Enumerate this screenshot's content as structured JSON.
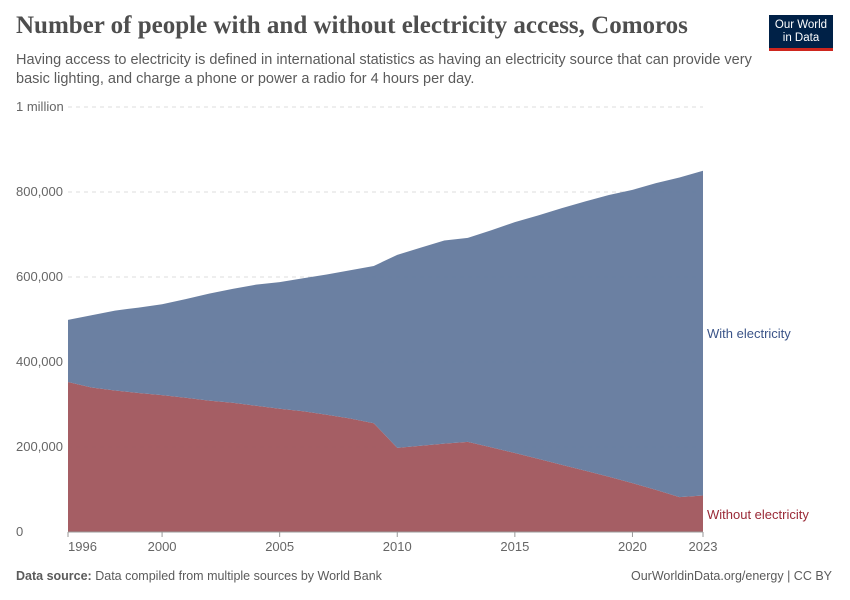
{
  "header": {
    "title": "Number of people with and without electricity access, Comoros",
    "subtitle": "Having access to electricity is defined in international statistics as having an electricity source that can provide very basic lighting, and charge a phone or power a radio for 4 hours per day.",
    "logo_text": "Our World in Data"
  },
  "footer": {
    "source_label": "Data source:",
    "source_text": "Data compiled from multiple sources by World Bank",
    "license": "OurWorldinData.org/energy | CC BY"
  },
  "chart_data": {
    "type": "area",
    "stacked": true,
    "x": [
      1996,
      1997,
      1998,
      1999,
      2000,
      2001,
      2002,
      2003,
      2004,
      2005,
      2006,
      2007,
      2008,
      2009,
      2010,
      2011,
      2012,
      2013,
      2014,
      2015,
      2016,
      2017,
      2018,
      2019,
      2020,
      2021,
      2022,
      2023
    ],
    "series": [
      {
        "name": "Without electricity",
        "color": "#a2595f",
        "values": [
          353000,
          340000,
          333000,
          327000,
          322000,
          316000,
          309000,
          304000,
          297000,
          290000,
          284000,
          276000,
          267000,
          256000,
          198000,
          203000,
          208000,
          212000,
          199000,
          186000,
          172000,
          158000,
          144000,
          130000,
          115000,
          99000,
          82000,
          86000
        ]
      },
      {
        "name": "With electricity",
        "color": "#667c9f",
        "values": [
          146000,
          170000,
          188000,
          201000,
          214000,
          232000,
          252000,
          268000,
          285000,
          298000,
          313000,
          330000,
          349000,
          370000,
          454000,
          466000,
          478000,
          480000,
          511000,
          543000,
          573000,
          604000,
          634000,
          663000,
          690000,
          722000,
          752000,
          764000
        ]
      }
    ],
    "ylim": [
      0,
      1000000
    ],
    "yticks": [
      {
        "v": 0,
        "label": "0"
      },
      {
        "v": 200000,
        "label": "200,000"
      },
      {
        "v": 400000,
        "label": "400,000"
      },
      {
        "v": 600000,
        "label": "600,000"
      },
      {
        "v": 800000,
        "label": "800,000"
      },
      {
        "v": 1000000,
        "label": "1 million"
      }
    ],
    "xticks": [
      1996,
      2000,
      2005,
      2010,
      2015,
      2020,
      2023
    ],
    "grid": "horizontal dashed",
    "legend": "right inline labels"
  }
}
